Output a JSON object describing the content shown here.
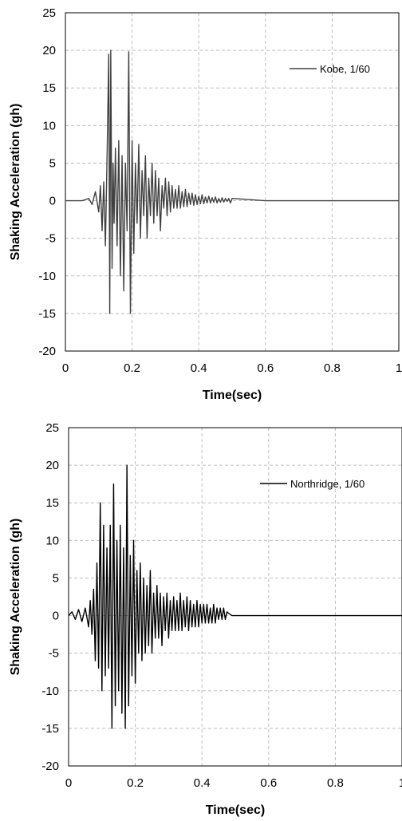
{
  "chart_data": [
    {
      "type": "line",
      "xlabel": "Time(sec)",
      "ylabel": "Shaking Acceleration (gh)",
      "xlim": [
        0,
        1
      ],
      "ylim": [
        -20,
        25
      ],
      "x_ticks": [
        "0",
        "0.2",
        "0.4",
        "0.6",
        "0.8",
        "1"
      ],
      "y_ticks": [
        "25",
        "20",
        "15",
        "10",
        "5",
        "0",
        "-5",
        "-10",
        "-15",
        "-20"
      ],
      "grid": true,
      "legend_position": "top-right",
      "series": [
        {
          "name": "Kobe, 1/60",
          "color": "#404040",
          "x": [
            0,
            0.05,
            0.07,
            0.08,
            0.09,
            0.1,
            0.105,
            0.11,
            0.115,
            0.12,
            0.125,
            0.13,
            0.133,
            0.136,
            0.14,
            0.143,
            0.146,
            0.15,
            0.155,
            0.16,
            0.165,
            0.17,
            0.175,
            0.18,
            0.185,
            0.19,
            0.195,
            0.2,
            0.205,
            0.21,
            0.215,
            0.22,
            0.225,
            0.23,
            0.235,
            0.24,
            0.245,
            0.25,
            0.255,
            0.26,
            0.265,
            0.27,
            0.275,
            0.28,
            0.285,
            0.29,
            0.295,
            0.3,
            0.305,
            0.31,
            0.315,
            0.32,
            0.325,
            0.33,
            0.335,
            0.34,
            0.345,
            0.35,
            0.355,
            0.36,
            0.365,
            0.37,
            0.375,
            0.38,
            0.385,
            0.39,
            0.395,
            0.4,
            0.405,
            0.41,
            0.415,
            0.42,
            0.425,
            0.43,
            0.435,
            0.44,
            0.445,
            0.45,
            0.455,
            0.46,
            0.465,
            0.47,
            0.475,
            0.48,
            0.485,
            0.49,
            0.495,
            0.5,
            0.6,
            0.7,
            0.8,
            0.9,
            1.0
          ],
          "y": [
            0,
            0,
            0.3,
            -0.5,
            1.2,
            -1.5,
            2,
            -4,
            2.5,
            -6,
            6,
            19.5,
            -15,
            20,
            -9,
            5,
            -3,
            7,
            -6,
            8,
            -10,
            6,
            -12,
            5,
            -4,
            19.8,
            -15,
            8,
            -7,
            5,
            -3,
            7.5,
            -5,
            4,
            -2,
            6,
            -5,
            3,
            -2,
            5,
            -3,
            4,
            -2,
            3,
            -4,
            2,
            -1,
            3,
            -2,
            2.5,
            -1.5,
            2,
            -1,
            1.5,
            -1,
            2,
            -1,
            1.2,
            -0.8,
            1.5,
            -0.8,
            1,
            -0.5,
            1,
            -0.6,
            0.8,
            -0.5,
            0.6,
            -0.4,
            0.8,
            -0.4,
            0.5,
            -0.3,
            0.6,
            -0.3,
            0.4,
            -0.2,
            0.5,
            -0.3,
            0.3,
            -0.2,
            0.4,
            -0.2,
            0.3,
            -0.1,
            0.3,
            -0.3,
            0.3,
            0,
            0,
            0,
            0,
            0
          ]
        }
      ]
    },
    {
      "type": "line",
      "xlabel": "Time(sec)",
      "ylabel": "Shaking Acceleration (gh)",
      "xlim": [
        0,
        1
      ],
      "ylim": [
        -20,
        25
      ],
      "x_ticks": [
        "0",
        "0.2",
        "0.4",
        "0.6",
        "0.8",
        "1"
      ],
      "y_ticks": [
        "25",
        "20",
        "15",
        "10",
        "5",
        "0",
        "-5",
        "-10",
        "-15",
        "-20"
      ],
      "grid": true,
      "legend_position": "top-right",
      "series": [
        {
          "name": "Northridge, 1/60",
          "color": "#000000",
          "x": [
            0,
            0.01,
            0.02,
            0.03,
            0.04,
            0.05,
            0.06,
            0.065,
            0.07,
            0.075,
            0.08,
            0.085,
            0.09,
            0.095,
            0.1,
            0.105,
            0.11,
            0.115,
            0.12,
            0.125,
            0.13,
            0.135,
            0.14,
            0.145,
            0.15,
            0.155,
            0.16,
            0.165,
            0.17,
            0.175,
            0.18,
            0.185,
            0.19,
            0.195,
            0.2,
            0.205,
            0.21,
            0.215,
            0.22,
            0.225,
            0.23,
            0.235,
            0.24,
            0.245,
            0.25,
            0.255,
            0.26,
            0.265,
            0.27,
            0.275,
            0.28,
            0.285,
            0.29,
            0.295,
            0.3,
            0.305,
            0.31,
            0.315,
            0.32,
            0.325,
            0.33,
            0.335,
            0.34,
            0.345,
            0.35,
            0.355,
            0.36,
            0.365,
            0.37,
            0.375,
            0.38,
            0.385,
            0.39,
            0.395,
            0.4,
            0.405,
            0.41,
            0.415,
            0.42,
            0.425,
            0.43,
            0.435,
            0.44,
            0.445,
            0.45,
            0.455,
            0.46,
            0.465,
            0.47,
            0.475,
            0.48,
            0.49,
            0.5,
            0.6,
            0.7,
            0.8,
            0.9,
            1.0
          ],
          "y": [
            0,
            0.5,
            -0.5,
            0.8,
            -0.8,
            1,
            -1.5,
            2,
            -2.5,
            3.5,
            -6,
            7,
            -7,
            15,
            -10,
            12,
            -8,
            9,
            -7,
            12,
            -15,
            17.5,
            -12,
            10,
            -10,
            12,
            -13,
            9,
            -15,
            20,
            -12,
            8,
            -8,
            10,
            -9,
            6,
            -5,
            7,
            -6,
            5,
            -5,
            4,
            -4,
            6,
            -5,
            3,
            -3,
            4,
            -3,
            3,
            -4,
            2.5,
            -2,
            3,
            -3,
            2,
            -2,
            2.5,
            -2,
            2,
            -2,
            3,
            -2,
            2,
            -1.5,
            2.5,
            -2,
            2,
            -1.5,
            1.5,
            -1.5,
            2,
            -1.5,
            1.5,
            -1,
            1.5,
            -1,
            1.5,
            -1,
            1,
            -1,
            1.5,
            -1,
            1,
            -0.5,
            1,
            -0.5,
            1,
            -0.5,
            0.5,
            0.3,
            0,
            0,
            0,
            0,
            0,
            0,
            0
          ]
        }
      ]
    }
  ]
}
